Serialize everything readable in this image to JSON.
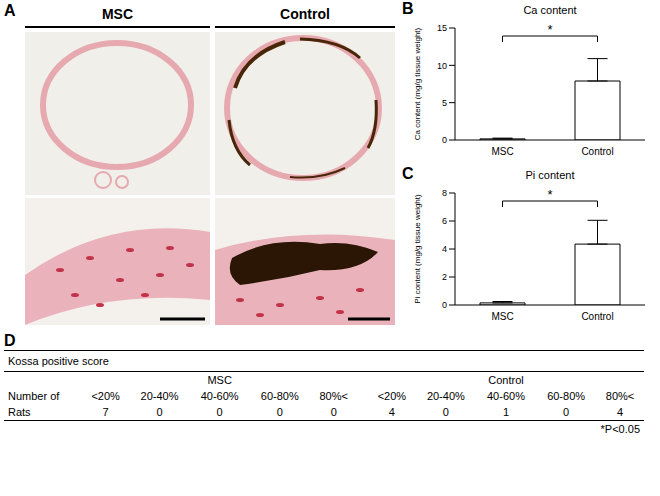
{
  "panel_a": {
    "panel_label": "A",
    "groups": [
      "MSC",
      "Control"
    ]
  },
  "chart_data": [
    {
      "panel_label": "B",
      "type": "bar",
      "title": "Ca content",
      "y_label": "Ca content (mg/g tissue weight)",
      "categories": [
        "MSC",
        "Control"
      ],
      "values": [
        0.15,
        7.9
      ],
      "errors": [
        0.1,
        3.0
      ],
      "color": "#ffffff",
      "ylim": [
        0,
        15
      ],
      "yticks": [
        0,
        5,
        10,
        15
      ],
      "annotation": "*"
    },
    {
      "panel_label": "C",
      "type": "bar",
      "title": "Pi content",
      "y_label": "Pi content (mg/g tissue weight)",
      "categories": [
        "MSC",
        "Control"
      ],
      "values": [
        0.15,
        4.35
      ],
      "errors": [
        0.1,
        1.7
      ],
      "color": "#ffffff",
      "ylim": [
        0,
        8
      ],
      "yticks": [
        0,
        2,
        4,
        6,
        8
      ],
      "annotation": "*"
    }
  ],
  "table": {
    "panel_label": "D",
    "title": "Kossa positive score",
    "row_labels": [
      "Number of",
      "Rats"
    ],
    "groups": [
      {
        "name": "MSC",
        "columns": [
          "<20%",
          "20-40%",
          "40-60%",
          "60-80%",
          "80%<"
        ],
        "values": [
          7,
          0,
          0,
          0,
          0
        ]
      },
      {
        "name": "Control",
        "columns": [
          "<20%",
          "20-40%",
          "40-60%",
          "60-80%",
          "80%<"
        ],
        "values": [
          4,
          0,
          1,
          0,
          4
        ]
      }
    ],
    "footnote": "*P<0.05"
  }
}
